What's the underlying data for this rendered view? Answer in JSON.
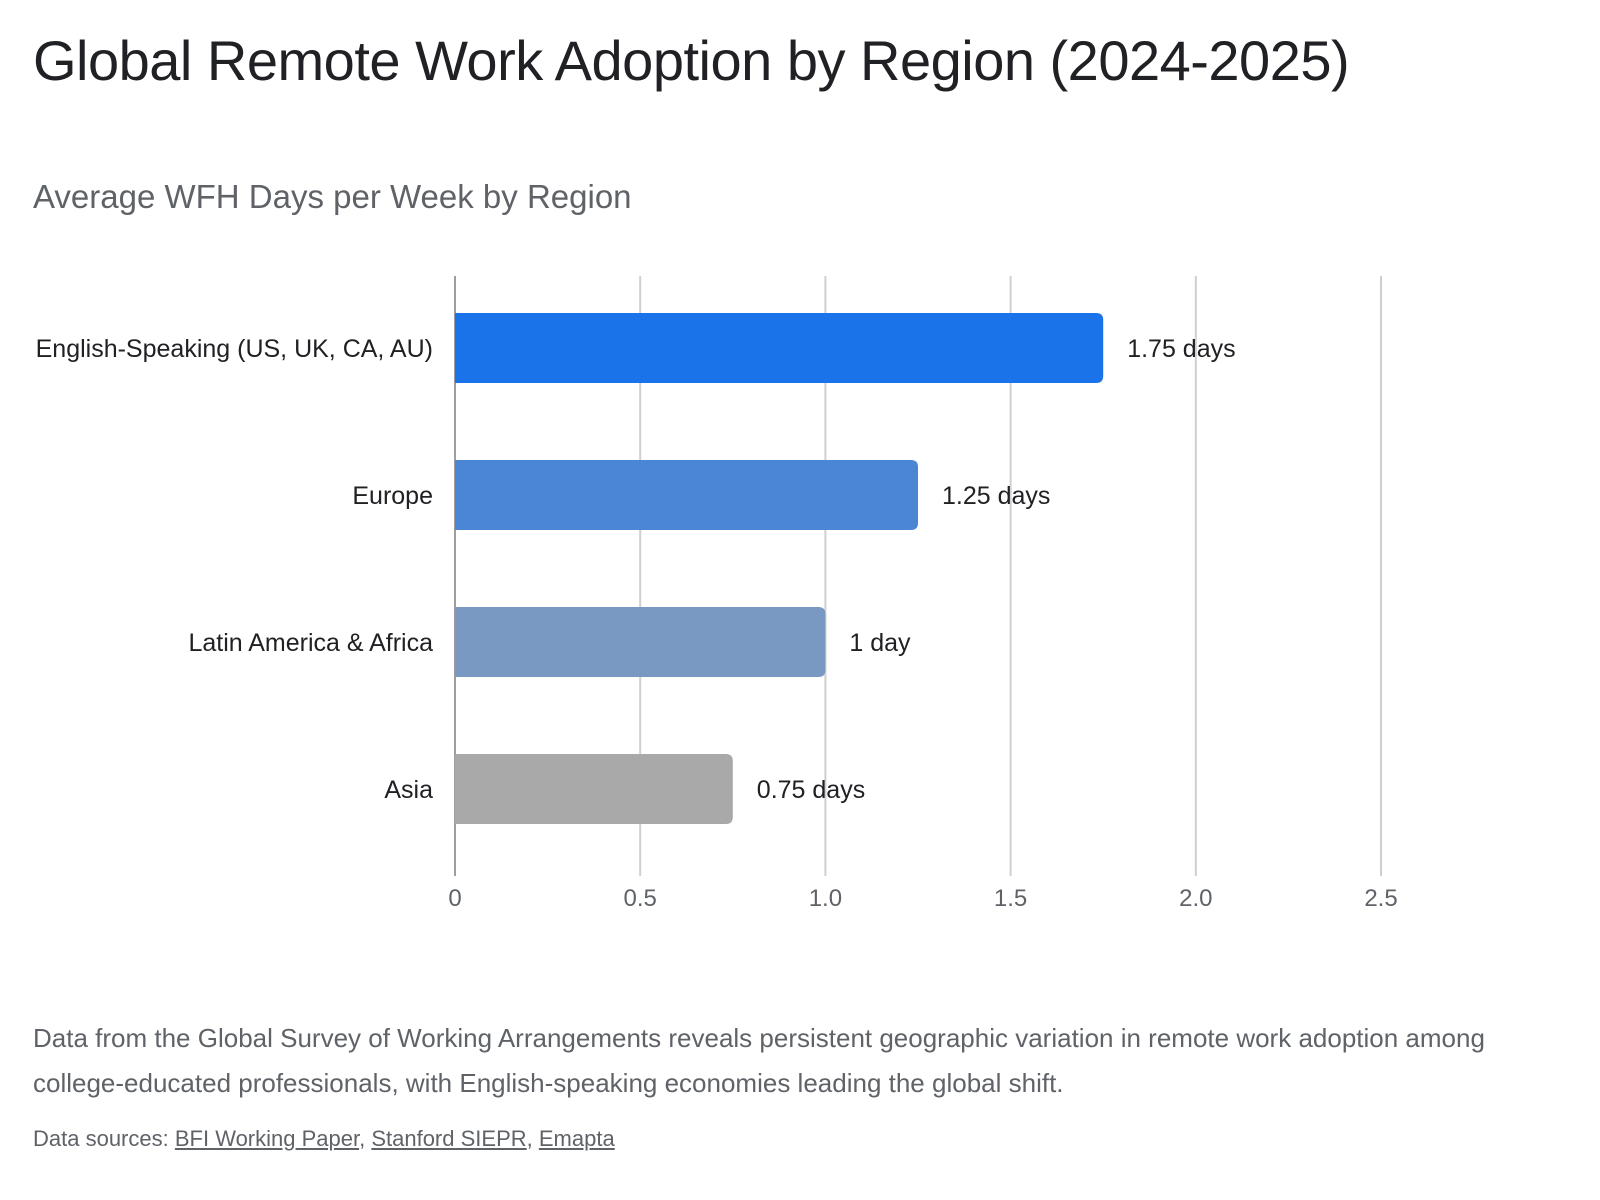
{
  "page": {
    "title": "Global Remote Work Adoption by Region (2024-2025)",
    "description": "Data from the Global Survey of Working Arrangements reveals persistent geographic variation in remote work adoption among college-educated professionals, with English-speaking economies leading the global shift.",
    "sources_label": "Data sources:",
    "sources": [
      {
        "label": "BFI Working Paper"
      },
      {
        "label": "Stanford SIEPR"
      },
      {
        "label": "Emapta"
      }
    ],
    "separator": ", "
  },
  "chart_data": {
    "type": "bar",
    "orientation": "horizontal",
    "title": "Average WFH Days per Week by Region",
    "categories": [
      "English-Speaking (US, UK, CA, AU)",
      "Europe",
      "Latin America & Africa",
      "Asia"
    ],
    "values": [
      1.75,
      1.25,
      1.0,
      0.75
    ],
    "data_labels": [
      "1.75 days",
      "1.25 days",
      "1 day",
      "0.75 days"
    ],
    "colors": [
      "#1a73e8",
      "#4a86d4",
      "#7a99c2",
      "#a9a9a9"
    ],
    "xlim": [
      0,
      2.5
    ],
    "x_ticks": [
      "0",
      "0.5",
      "1.0",
      "1.5",
      "2.0",
      "2.5"
    ],
    "grid": true,
    "legend": "none"
  }
}
